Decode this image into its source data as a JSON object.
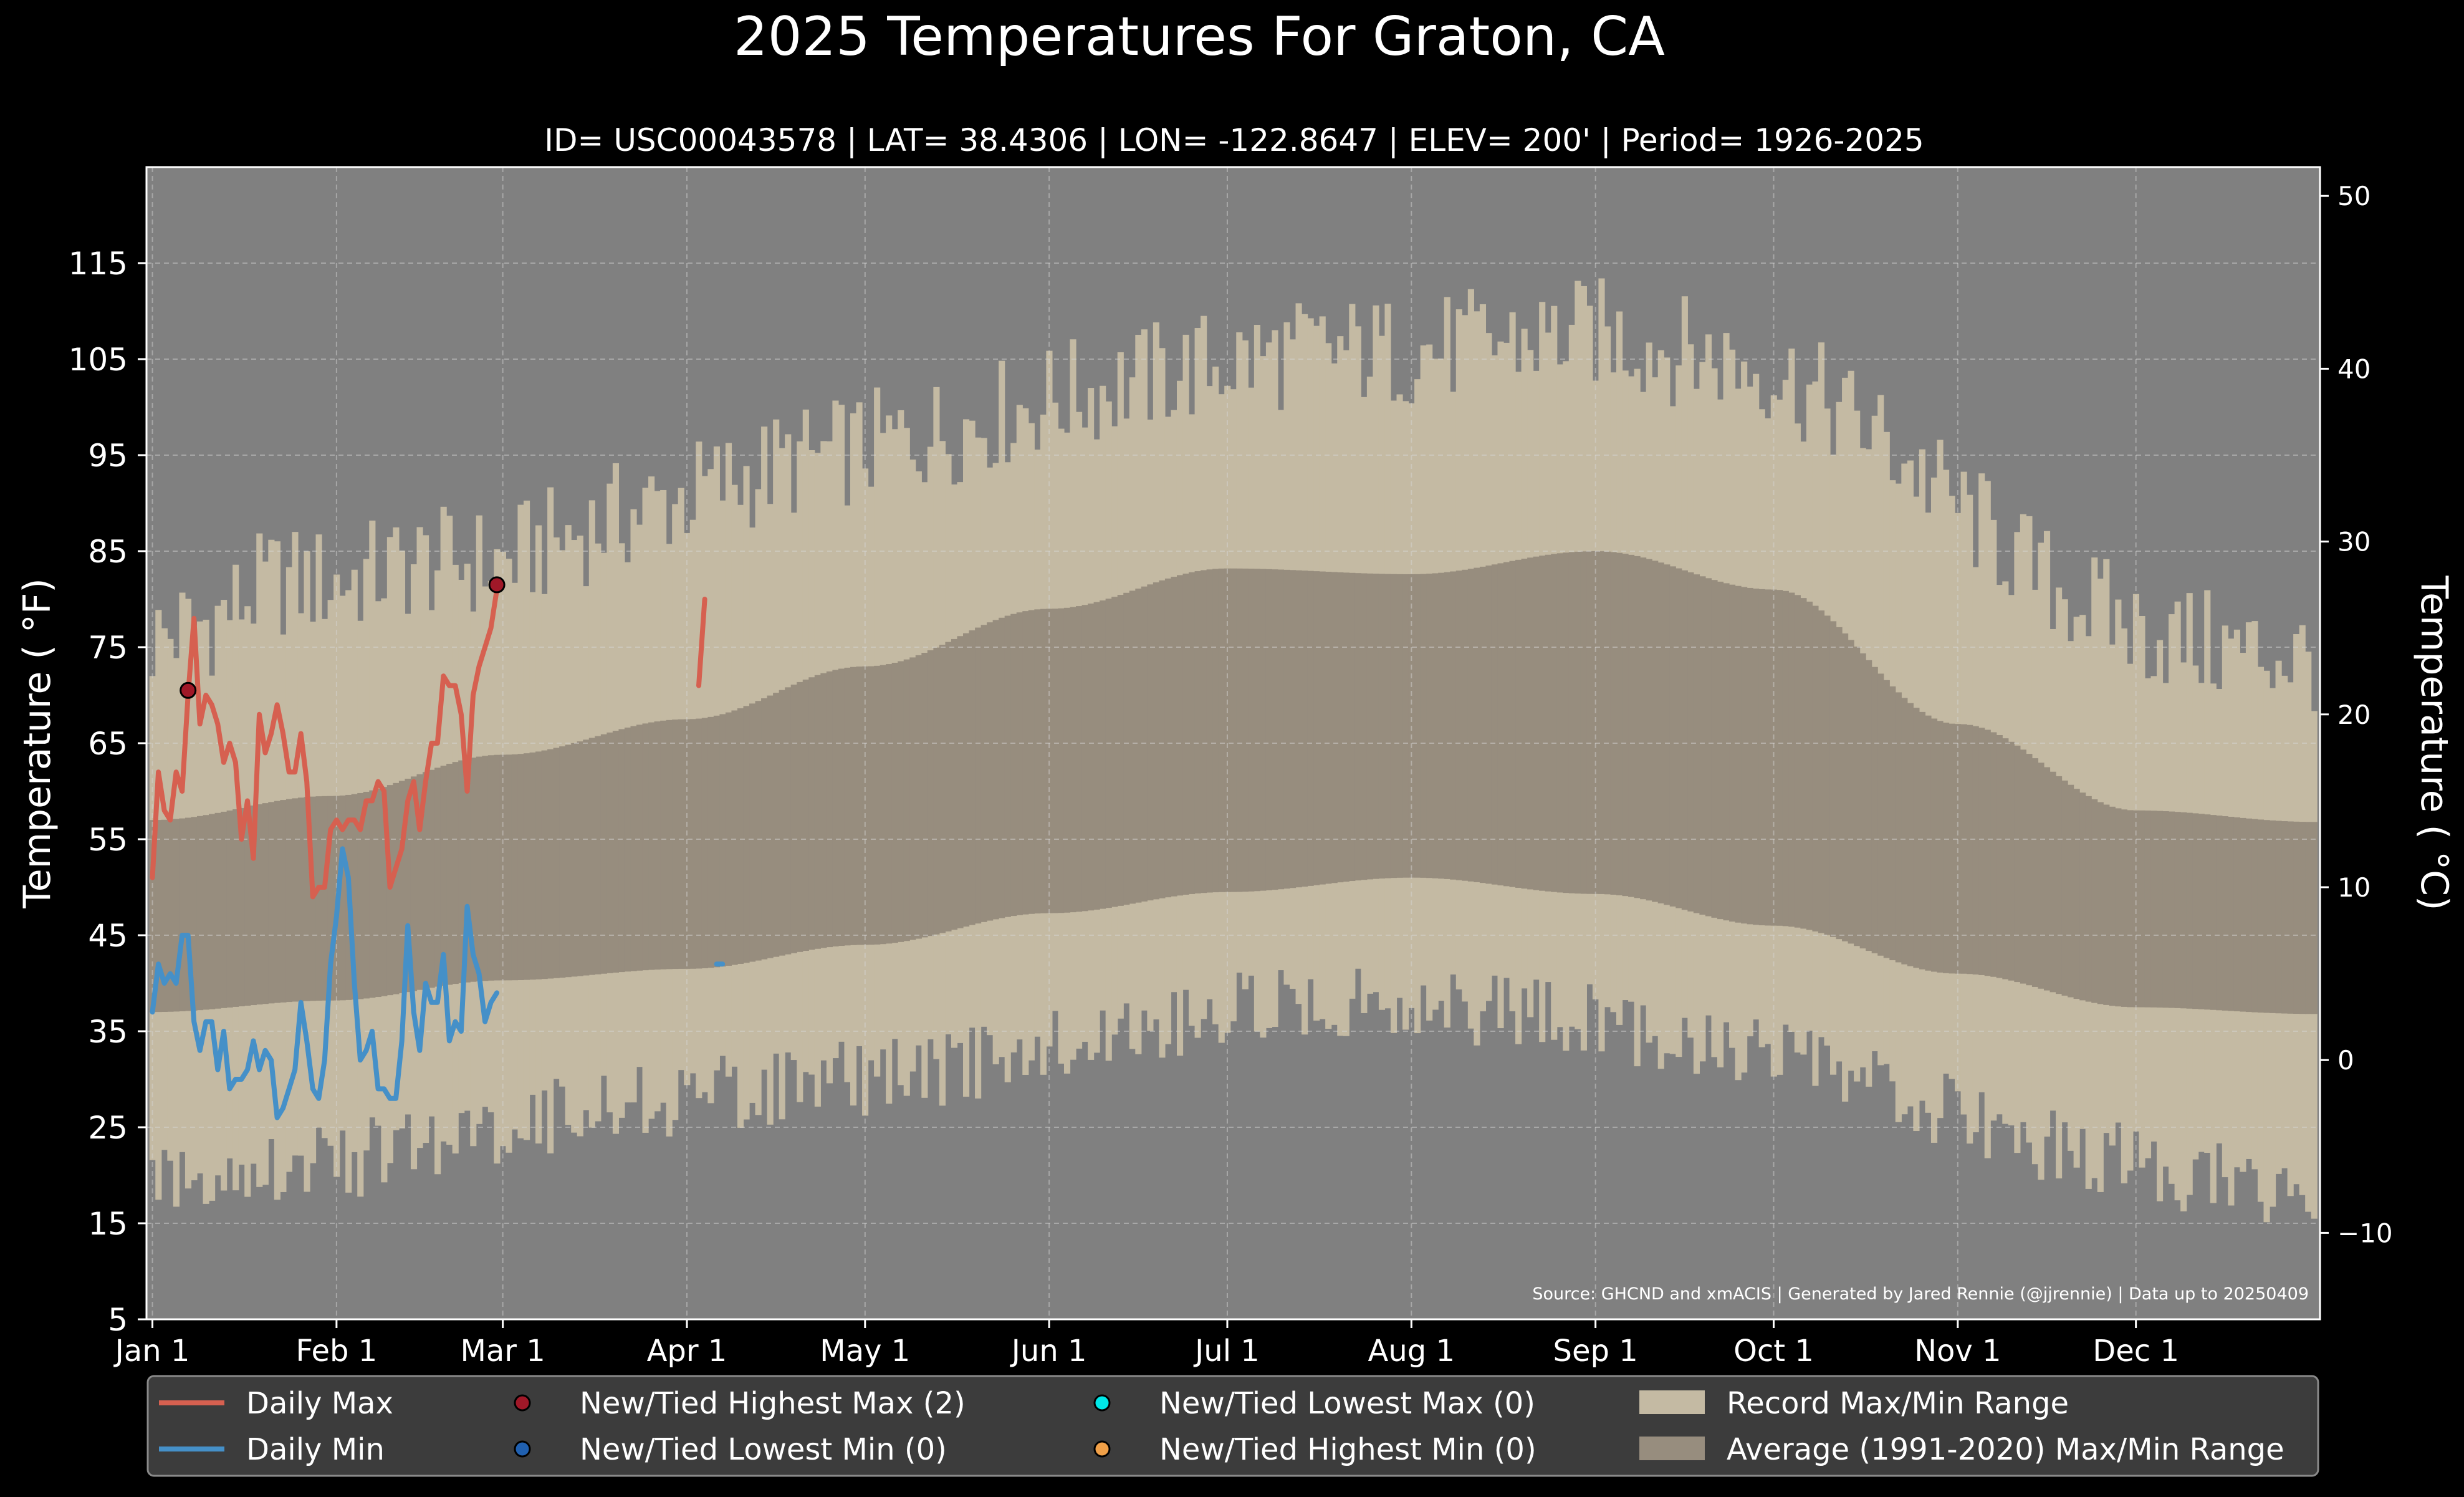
{
  "title": "2025 Temperatures For Graton, CA",
  "subtitle": "ID= USC00043578 | LAT= 38.4306 | LON= -122.8647 | ELEV= 200' | Period= 1926-2025",
  "source": "Source: GHCND and xmACIS | Generated by Jared Rennie (@jjrennie) | Data up to 20250409",
  "colors": {
    "background": "#000000",
    "plot_bg": "#808080",
    "record_range": "#c4baa3",
    "normal_range": "#978d7e",
    "daily_max": "#d66050",
    "daily_min": "#4590c8",
    "new_high_max": "#a01828",
    "new_low_min": "#2060b0",
    "new_low_max": "#00e8e8",
    "new_high_min": "#f0a048",
    "legend_bg": "#3c3c3c"
  },
  "chart_data": {
    "type": "line",
    "x_unit": "day of year 2025",
    "ylabel_left": "Temperature ( $^\\circ$F)",
    "ylabel_right": "Temperature ( $^\\circ$C)",
    "ylim": [
      5,
      125
    ],
    "xlim": [
      -1,
      365
    ],
    "left_ticks": [
      5,
      15,
      25,
      35,
      45,
      55,
      65,
      75,
      85,
      95,
      105,
      115
    ],
    "left_tick_labels": [
      "5",
      "15",
      "25",
      "35",
      "45",
      "55",
      "65",
      "75",
      "85",
      "95",
      "105",
      "115"
    ],
    "right_ticks": [
      -10,
      0,
      10,
      20,
      30,
      40,
      50
    ],
    "right_tick_labels": [
      "−10",
      "0",
      "10",
      "20",
      "30",
      "40",
      "50"
    ],
    "x_ticks": [
      {
        "day": 0,
        "label": "Jan 1"
      },
      {
        "day": 31,
        "label": "Feb 1"
      },
      {
        "day": 59,
        "label": "Mar 1"
      },
      {
        "day": 90,
        "label": "Apr 1"
      },
      {
        "day": 120,
        "label": "May 1"
      },
      {
        "day": 151,
        "label": "Jun 1"
      },
      {
        "day": 181,
        "label": "Jul 1"
      },
      {
        "day": 212,
        "label": "Aug 1"
      },
      {
        "day": 243,
        "label": "Sep 1"
      },
      {
        "day": 273,
        "label": "Oct 1"
      },
      {
        "day": 304,
        "label": "Nov 1"
      },
      {
        "day": 334,
        "label": "Dec 1"
      }
    ],
    "grid": true,
    "record_max_anchors": [
      [
        0,
        74
      ],
      [
        10,
        76
      ],
      [
        20,
        80
      ],
      [
        31,
        80
      ],
      [
        45,
        82
      ],
      [
        59,
        82
      ],
      [
        75,
        86
      ],
      [
        90,
        89
      ],
      [
        105,
        92
      ],
      [
        120,
        94
      ],
      [
        135,
        96
      ],
      [
        151,
        99
      ],
      [
        166,
        101
      ],
      [
        181,
        103
      ],
      [
        196,
        104
      ],
      [
        212,
        104
      ],
      [
        227,
        105
      ],
      [
        243,
        106
      ],
      [
        258,
        104
      ],
      [
        273,
        102
      ],
      [
        289,
        96
      ],
      [
        304,
        88
      ],
      [
        319,
        80
      ],
      [
        334,
        75
      ],
      [
        349,
        73
      ],
      [
        364,
        72
      ]
    ],
    "record_min_anchors": [
      [
        0,
        21
      ],
      [
        10,
        21
      ],
      [
        20,
        22
      ],
      [
        31,
        22
      ],
      [
        45,
        24
      ],
      [
        59,
        26
      ],
      [
        75,
        28
      ],
      [
        90,
        29
      ],
      [
        105,
        30
      ],
      [
        120,
        31
      ],
      [
        135,
        32
      ],
      [
        151,
        34
      ],
      [
        166,
        36
      ],
      [
        181,
        38
      ],
      [
        196,
        39
      ],
      [
        212,
        39
      ],
      [
        227,
        38
      ],
      [
        243,
        37
      ],
      [
        258,
        35
      ],
      [
        273,
        33
      ],
      [
        289,
        30
      ],
      [
        304,
        27
      ],
      [
        319,
        24
      ],
      [
        334,
        22
      ],
      [
        349,
        20
      ],
      [
        364,
        19
      ]
    ],
    "normal_max_anchors": [
      [
        0,
        57
      ],
      [
        30,
        59.5
      ],
      [
        59,
        63.8
      ],
      [
        90,
        67.5
      ],
      [
        120,
        73
      ],
      [
        151,
        79
      ],
      [
        181,
        83.2
      ],
      [
        212,
        82.6
      ],
      [
        243,
        85
      ],
      [
        273,
        81
      ],
      [
        304,
        67
      ],
      [
        334,
        58
      ],
      [
        364,
        56.8
      ]
    ],
    "normal_min_anchors": [
      [
        0,
        37
      ],
      [
        30,
        38.2
      ],
      [
        59,
        40.3
      ],
      [
        90,
        41.5
      ],
      [
        120,
        44
      ],
      [
        151,
        47.3
      ],
      [
        181,
        49.5
      ],
      [
        212,
        51
      ],
      [
        243,
        49.3
      ],
      [
        273,
        46
      ],
      [
        304,
        41
      ],
      [
        334,
        37.5
      ],
      [
        364,
        36.8
      ]
    ],
    "series": [
      {
        "name": "Daily Max",
        "start_day": 0,
        "values": [
          51,
          62,
          58,
          57,
          62,
          60,
          70,
          78,
          67,
          70,
          69,
          67,
          63,
          65,
          63,
          55,
          59,
          53,
          68,
          64,
          66,
          69,
          66,
          62,
          62,
          66,
          61,
          49,
          50,
          50,
          56,
          57,
          56,
          57,
          57,
          56,
          59,
          59,
          61,
          60,
          50,
          52,
          54,
          59,
          61,
          56,
          61,
          65,
          65,
          72,
          71,
          71,
          68,
          60,
          70,
          73,
          75,
          77,
          81
        ],
        "gaps": [
          {
            "start_day": 92,
            "values": [
              71,
              80
            ]
          }
        ]
      },
      {
        "name": "Daily Min",
        "start_day": 0,
        "values": [
          37,
          42,
          40,
          41,
          40,
          45,
          45,
          36,
          33,
          36,
          36,
          31,
          35,
          29,
          30,
          30,
          31,
          34,
          31,
          33,
          32,
          26,
          27,
          29,
          31,
          38,
          34,
          29,
          28,
          32,
          42,
          47,
          54,
          51,
          40,
          32,
          33,
          35,
          29,
          29,
          28,
          28,
          34,
          46,
          37,
          33,
          40,
          38,
          38,
          43,
          34,
          36,
          35,
          48,
          43,
          41,
          36,
          38,
          39
        ],
        "gaps": [
          {
            "start_day": 95,
            "values": [
              42,
              42
            ]
          }
        ]
      }
    ],
    "record_markers": [
      {
        "name": "New/Tied Highest Max (2)",
        "points": [
          [
            6,
            70.5
          ],
          [
            58,
            81.5
          ]
        ]
      }
    ],
    "legend": [
      {
        "type": "line",
        "label": "Daily Max",
        "color_key": "daily_max"
      },
      {
        "type": "marker",
        "label": "New/Tied Highest Max (2)",
        "color_key": "new_high_max"
      },
      {
        "type": "marker",
        "label": "New/Tied Lowest Max (0)",
        "color_key": "new_low_max"
      },
      {
        "type": "patch",
        "label": "Record Max/Min Range",
        "color_key": "record_range"
      },
      {
        "type": "line",
        "label": "Daily Min",
        "color_key": "daily_min"
      },
      {
        "type": "marker",
        "label": "New/Tied Lowest Min (0)",
        "color_key": "new_low_min"
      },
      {
        "type": "marker",
        "label": "New/Tied Highest Min (0)",
        "color_key": "new_high_min"
      },
      {
        "type": "patch",
        "label": "Average (1991-2020) Max/Min Range",
        "color_key": "normal_range"
      }
    ],
    "legend_position": "bottom"
  }
}
